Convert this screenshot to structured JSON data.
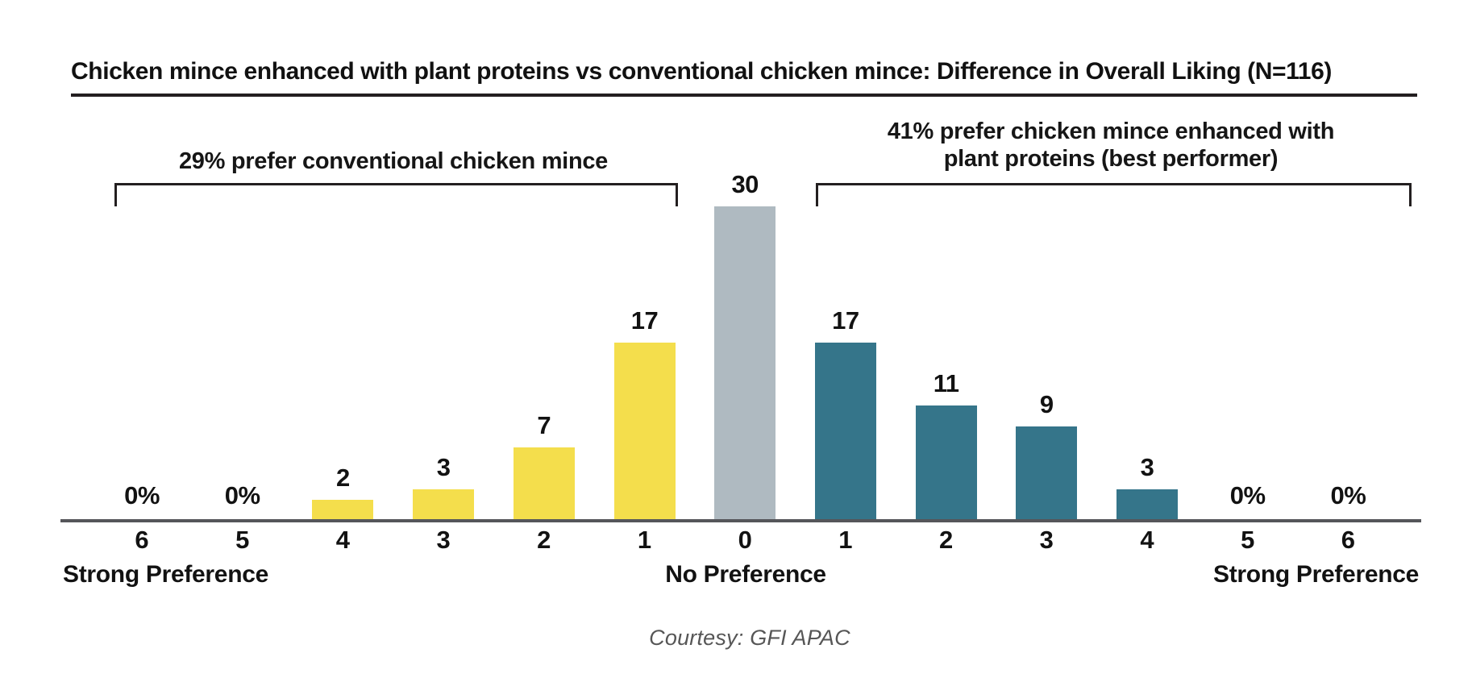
{
  "title": "Chicken mince enhanced with plant proteins vs conventional chicken mince: Difference in Overall Liking (N=116)",
  "annotations": {
    "left": {
      "label": "29% prefer conventional chicken mince"
    },
    "right": {
      "line1": "41% prefer chicken mince enhanced with",
      "line2": "plant proteins (best performer)"
    }
  },
  "axis": {
    "left_label": "Strong Preference",
    "center_label": "No Preference",
    "right_label": "Strong Preference"
  },
  "caption": "Courtesy: GFI APAC",
  "colors": {
    "conventional": "#f4de4c",
    "no_preference": "#afbac1",
    "plant_protein": "#35758a",
    "axis_line": "#55565a",
    "bracket": "#231f20",
    "caption_text": "#565656"
  },
  "chart_data": {
    "type": "bar",
    "title": "Chicken mince enhanced with plant proteins vs conventional chicken mince: Difference in Overall Liking (N=116)",
    "categories": [
      "6",
      "5",
      "4",
      "3",
      "2",
      "1",
      "0",
      "1",
      "2",
      "3",
      "4",
      "5",
      "6"
    ],
    "values": [
      0,
      0,
      2,
      3,
      7,
      17,
      30,
      17,
      11,
      9,
      3,
      0,
      0
    ],
    "value_labels": [
      "0%",
      "0%",
      "2",
      "3",
      "7",
      "17",
      "30",
      "17",
      "11",
      "9",
      "3",
      "0%",
      "0%"
    ],
    "groups": [
      "conventional",
      "conventional",
      "conventional",
      "conventional",
      "conventional",
      "conventional",
      "no_preference",
      "plant_protein",
      "plant_protein",
      "plant_protein",
      "plant_protein",
      "plant_protein",
      "plant_protein"
    ],
    "left_share_label": "29% prefer conventional chicken mince",
    "right_share_label": "41% prefer chicken mince enhanced with plant proteins (best performer)",
    "xlabel_left": "Strong Preference",
    "xlabel_center": "No Preference",
    "xlabel_right": "Strong Preference",
    "ylim": [
      0,
      30
    ],
    "grid": false,
    "legend": false
  }
}
